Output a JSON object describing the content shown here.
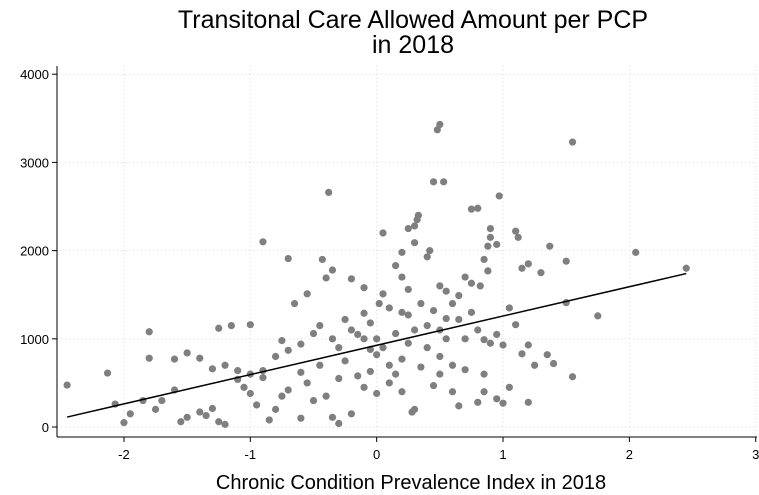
{
  "chart_data": {
    "type": "scatter",
    "title": [
      "Transitonal Care Allowed Amount per PCP",
      "in 2018"
    ],
    "x_label": "Chronic Condition Prevalence Index in 2018",
    "x": [
      -2.45,
      -2.13,
      -2.07,
      0.5,
      0.48,
      1.55,
      0.45,
      0.53,
      -0.38,
      0.75,
      0.8,
      0.97,
      2.05,
      2.45,
      1.75,
      1.55,
      1.5,
      1.37,
      1.5,
      1.3,
      1.15,
      1.2,
      1.1,
      1.12,
      0.9,
      0.9,
      0.88,
      0.95,
      0.85,
      0.88,
      0.82,
      0.75,
      0.7,
      0.65,
      0.55,
      0.5,
      0.4,
      0.42,
      0.3,
      0.32,
      0.33,
      0.25,
      0.3,
      0.2,
      0.05,
      0.15,
      0.2,
      0.25,
      0.05,
      0.02,
      -0.1,
      -0.2,
      -0.35,
      -0.43,
      -0.4,
      -0.55,
      -0.65,
      -0.7,
      -0.9,
      -1.0,
      -1.15,
      -1.25,
      -1.8,
      -1.5,
      -1.6,
      -1.8,
      -1.4,
      -1.3,
      -1.2,
      -1.1,
      -1.0,
      -0.9,
      -0.8,
      -0.75,
      -0.7,
      -0.6,
      -0.5,
      -0.45,
      -0.35,
      -0.3,
      -0.25,
      -0.2,
      -0.15,
      -0.1,
      -0.05,
      0.0,
      0.05,
      0.1,
      0.15,
      0.2,
      0.25,
      0.3,
      0.35,
      0.4,
      0.45,
      0.5,
      0.55,
      0.6,
      0.65,
      0.7,
      0.75,
      0.8,
      0.85,
      0.9,
      0.95,
      1.0,
      1.05,
      1.1,
      1.15,
      1.2,
      1.25,
      1.35,
      1.4,
      1.0,
      1.2,
      1.05,
      0.85,
      0.8,
      0.65,
      0.6,
      0.5,
      0.45,
      0.3,
      0.28,
      0.2,
      0.15,
      0.1,
      0.0,
      -0.05,
      -0.1,
      -0.2,
      -0.3,
      -0.35,
      -0.4,
      -0.5,
      -0.55,
      -0.6,
      -0.7,
      -0.8,
      -0.85,
      -0.95,
      -1.0,
      -1.05,
      -1.1,
      -1.2,
      -1.3,
      -1.35,
      -1.4,
      -1.5,
      -1.55,
      -1.6,
      -1.7,
      -1.75,
      -1.85,
      -1.95,
      -2.0,
      -1.25,
      -0.9,
      -0.75,
      -0.6,
      -0.45,
      -0.25,
      -0.15,
      0.0,
      0.1,
      0.2,
      0.35,
      0.5,
      0.6,
      0.7,
      0.85,
      0.95,
      0.4,
      0.25,
      -0.05,
      -0.3,
      -0.1,
      0.55
    ],
    "values": [
      476,
      612,
      260,
      3430,
      3370,
      3230,
      2780,
      2780,
      2660,
      2470,
      2480,
      2620,
      1980,
      1800,
      1260,
      570,
      1880,
      2050,
      1410,
      1750,
      1800,
      1850,
      2220,
      2150,
      2250,
      2150,
      2050,
      2070,
      1900,
      1770,
      1600,
      1630,
      1700,
      1490,
      1540,
      1600,
      1930,
      2000,
      2280,
      2350,
      2400,
      2250,
      2090,
      1980,
      2200,
      1830,
      1700,
      1560,
      1510,
      1400,
      1580,
      1680,
      1780,
      1900,
      1690,
      1510,
      1400,
      1910,
      2100,
      1160,
      1150,
      1120,
      1080,
      840,
      770,
      780,
      780,
      660,
      700,
      640,
      600,
      640,
      800,
      980,
      870,
      940,
      1060,
      1150,
      1000,
      900,
      1220,
      1100,
      1050,
      1290,
      1180,
      1000,
      900,
      1350,
      1060,
      1300,
      1270,
      1100,
      1400,
      1150,
      1320,
      1100,
      1230,
      1400,
      1220,
      1000,
      1300,
      1100,
      990,
      950,
      1050,
      930,
      1350,
      1160,
      830,
      930,
      700,
      820,
      720,
      270,
      280,
      450,
      600,
      280,
      240,
      400,
      600,
      470,
      200,
      170,
      400,
      600,
      500,
      380,
      630,
      450,
      150,
      40,
      110,
      350,
      300,
      500,
      100,
      420,
      200,
      80,
      250,
      380,
      450,
      540,
      30,
      210,
      130,
      170,
      110,
      60,
      420,
      300,
      200,
      300,
      150,
      50,
      60,
      560,
      350,
      620,
      700,
      750,
      580,
      820,
      700,
      770,
      680,
      800,
      700,
      650,
      400,
      320,
      900,
      950,
      880,
      550,
      1000,
      1000
    ],
    "color": "#7f7f7f",
    "fit_line": {
      "x": [
        -2.45,
        2.45
      ],
      "values": [
        113,
        1740
      ],
      "color": "#000000"
    },
    "xlim": [
      -2.53,
      3.01
    ],
    "ylim": [
      -113,
      4093
    ],
    "xticks": [
      -2,
      -1,
      0,
      1,
      2,
      3
    ],
    "yticks": [
      0,
      1000,
      2000,
      3000,
      4000
    ],
    "grid": true
  }
}
